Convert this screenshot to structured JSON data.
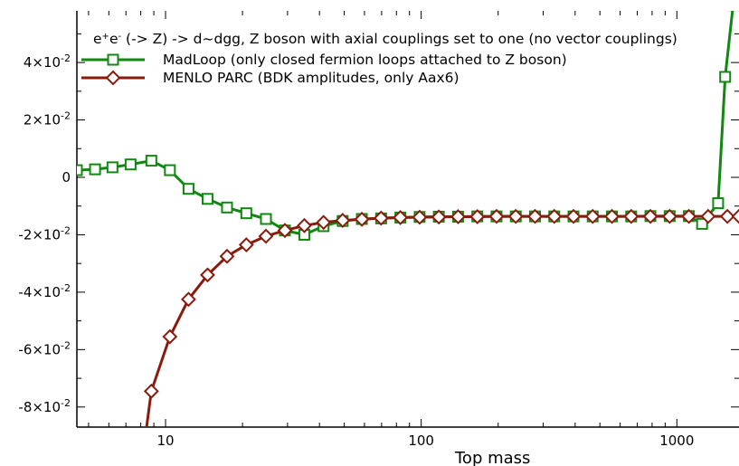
{
  "chart_data": {
    "type": "line",
    "annotation": {
      "prefix": "e",
      "sup1": "+",
      "mid": "e",
      "sup2": "-",
      "rest": " (-> Z) -> d~dgg,  Z boson with axial couplings set to one (no vector couplings)"
    },
    "xlabel": "Top mass",
    "ylabel": "",
    "xscale": "log",
    "xlim": [
      4.5,
      1750
    ],
    "ylim": [
      -0.087,
      0.058
    ],
    "grid": false,
    "legend_position": "top-left",
    "x_ticks": [
      {
        "value": 10,
        "label": "10"
      },
      {
        "value": 100,
        "label": "100"
      },
      {
        "value": 1000,
        "label": "1000"
      }
    ],
    "y_ticks": [
      {
        "value": 0.04,
        "mant": "4×10",
        "exp": "-2"
      },
      {
        "value": 0.02,
        "mant": "2×10",
        "exp": "-2"
      },
      {
        "value": 0.0,
        "mant": "0",
        "exp": ""
      },
      {
        "value": -0.02,
        "mant": "-2×10",
        "exp": "-2"
      },
      {
        "value": -0.04,
        "mant": "-4×10",
        "exp": "-2"
      },
      {
        "value": -0.06,
        "mant": "-6×10",
        "exp": "-2"
      },
      {
        "value": -0.08,
        "mant": "-8×10",
        "exp": "-2"
      }
    ],
    "series": [
      {
        "name": "MadLoop (only closed fermion loops attached to Z boson)",
        "color": "#118811",
        "marker": "square",
        "x": [
          4.5,
          5.3,
          6.2,
          7.3,
          8.8,
          10.4,
          12.3,
          14.6,
          17.4,
          20.7,
          24.7,
          29.3,
          34.9,
          41.5,
          49.3,
          58.6,
          69.7,
          82.9,
          98.6,
          117.2,
          139.4,
          165.8,
          197.1,
          234.4,
          278.7,
          331.4,
          394.1,
          468.6,
          557.3,
          662.7,
          788.1,
          937.2,
          1114.5,
          1255,
          1450,
          1545,
          1660
        ],
        "y": [
          0.0025,
          0.0028,
          0.0035,
          0.0045,
          0.0058,
          0.0025,
          -0.004,
          -0.0075,
          -0.0105,
          -0.0125,
          -0.0145,
          -0.0185,
          -0.02,
          -0.017,
          -0.0152,
          -0.0145,
          -0.0143,
          -0.014,
          -0.0138,
          -0.0137,
          -0.0137,
          -0.0136,
          -0.0136,
          -0.0136,
          -0.0136,
          -0.0136,
          -0.0136,
          -0.0136,
          -0.0136,
          -0.0136,
          -0.0135,
          -0.0135,
          -0.0135,
          -0.0162,
          -0.009,
          0.035,
          0.06
        ]
      },
      {
        "name": "MENLO PARC (BDK amplitudes, only Aax6)",
        "color": "#8b1a0d",
        "marker": "diamond",
        "x": [
          8.2,
          8.8,
          10.4,
          12.3,
          14.6,
          17.4,
          20.7,
          24.7,
          29.3,
          34.9,
          41.5,
          49.3,
          58.6,
          69.7,
          82.9,
          98.6,
          117.2,
          139.4,
          165.8,
          197.1,
          234.4,
          278.7,
          331.4,
          394.1,
          468.6,
          557.3,
          662.7,
          788.1,
          937.2,
          1114.5,
          1325.4,
          1576.2,
          1750
        ],
        "y": [
          -0.095,
          -0.0745,
          -0.0555,
          -0.0425,
          -0.034,
          -0.0275,
          -0.0235,
          -0.0205,
          -0.0185,
          -0.0168,
          -0.0157,
          -0.015,
          -0.0146,
          -0.0142,
          -0.014,
          -0.0139,
          -0.0138,
          -0.0137,
          -0.0137,
          -0.0136,
          -0.0136,
          -0.0136,
          -0.0136,
          -0.0136,
          -0.0136,
          -0.0136,
          -0.0136,
          -0.0136,
          -0.0136,
          -0.0136,
          -0.0136,
          -0.0136,
          -0.0136
        ]
      }
    ]
  }
}
